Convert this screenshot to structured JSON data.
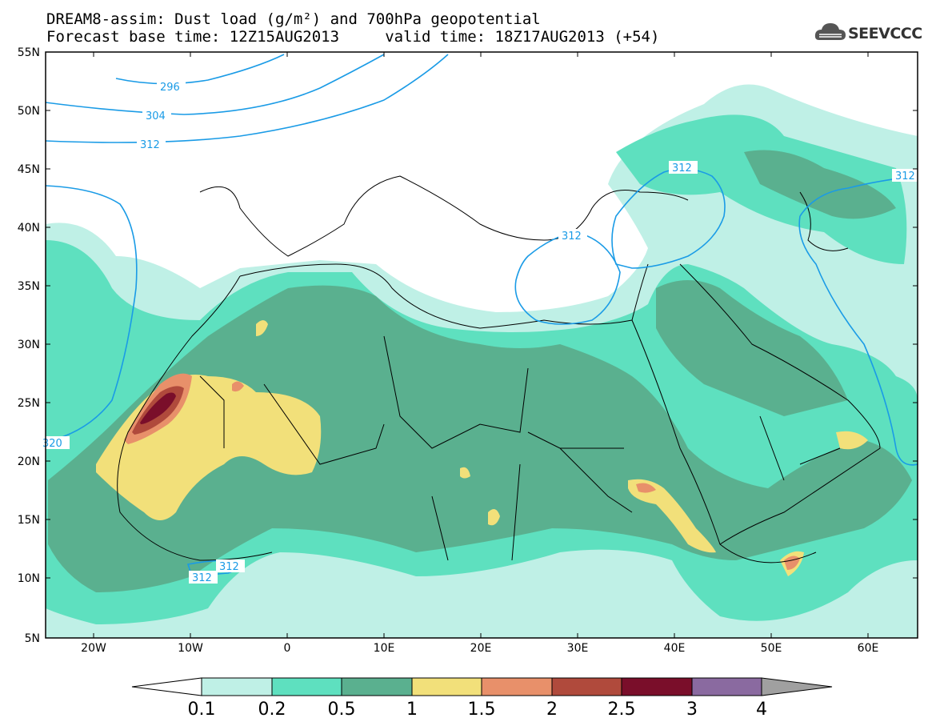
{
  "title": {
    "line1": "DREAM8-assim: Dust load (g/m²) and 700hPa geopotential",
    "line2": "Forecast base time: 12Z15AUG2013     valid time: 18Z17AUG2013 (+54)"
  },
  "logo": {
    "text": "SEEVCCC",
    "icon": "cloud-icon"
  },
  "axes": {
    "lat_labels": [
      "55N",
      "50N",
      "45N",
      "40N",
      "35N",
      "30N",
      "25N",
      "20N",
      "15N",
      "10N",
      "5N"
    ],
    "lon_labels": [
      "20W",
      "10W",
      "0",
      "10E",
      "20E",
      "30E",
      "40E",
      "50E",
      "60E"
    ]
  },
  "contour_labels": [
    "296",
    "304",
    "312",
    "312",
    "312",
    "312",
    "320",
    "312",
    "312"
  ],
  "colorbar": {
    "labels": [
      "0.1",
      "0.2",
      "0.5",
      "1",
      "1.5",
      "2",
      "2.5",
      "3",
      "4"
    ],
    "colors": [
      "#bff0e6",
      "#5ee0bf",
      "#5ab08f",
      "#f2e07a",
      "#e8906a",
      "#b04a3c",
      "#7a0e2a",
      "#8a6aa0"
    ],
    "under_color": "#ffffff",
    "over_color": "#a0a0a0"
  },
  "colors": {
    "contour": "#1a9be6",
    "coast": "#000000"
  }
}
